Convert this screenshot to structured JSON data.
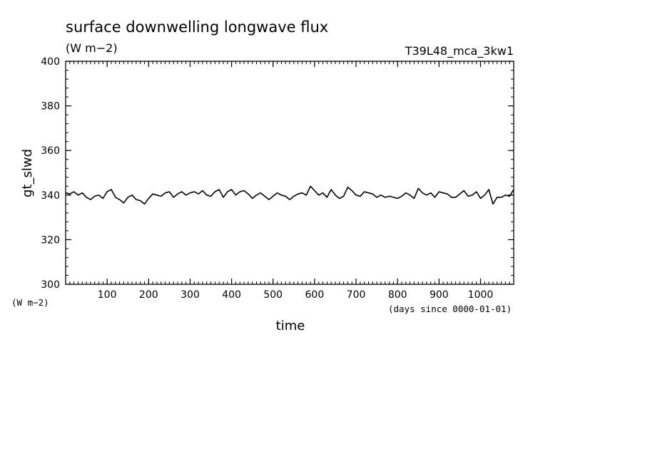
{
  "chart_data": {
    "type": "line",
    "title": "surface downwelling longwave flux",
    "subtitle": "(W m−2)",
    "run_label": "T39L48_mca_3kw1",
    "xlabel": "time",
    "xunits": "(days since 0000-01-01)",
    "ylabel": "gt_slwd",
    "yunits": "(W m−2)",
    "xlim": [
      0,
      1080
    ],
    "ylim": [
      300,
      400
    ],
    "xticks": [
      100,
      200,
      300,
      400,
      500,
      600,
      700,
      800,
      900,
      1000
    ],
    "xtick_labels": [
      "100",
      "200",
      "300",
      "400",
      "500",
      "600",
      "700",
      "800",
      "900",
      "1000"
    ],
    "yticks": [
      300,
      320,
      340,
      360,
      380,
      400
    ],
    "ytick_labels": [
      "300",
      "320",
      "340",
      "360",
      "380",
      "400"
    ],
    "grid": false,
    "series": [
      {
        "color": "#000000",
        "x": [
          0,
          10,
          20,
          30,
          40,
          50,
          60,
          70,
          80,
          90,
          100,
          110,
          120,
          130,
          140,
          150,
          160,
          170,
          180,
          190,
          200,
          210,
          220,
          230,
          240,
          250,
          260,
          270,
          280,
          290,
          300,
          310,
          320,
          330,
          340,
          350,
          360,
          370,
          380,
          390,
          400,
          410,
          420,
          430,
          440,
          450,
          460,
          470,
          480,
          490,
          500,
          510,
          520,
          530,
          540,
          550,
          560,
          570,
          580,
          590,
          600,
          610,
          620,
          630,
          640,
          650,
          660,
          670,
          680,
          690,
          700,
          710,
          720,
          730,
          740,
          750,
          760,
          770,
          780,
          790,
          800,
          810,
          820,
          830,
          840,
          850,
          860,
          870,
          880,
          890,
          900,
          910,
          920,
          930,
          940,
          950,
          960,
          970,
          980,
          990,
          1000,
          1010,
          1020,
          1030,
          1040,
          1050,
          1060,
          1070,
          1080
        ],
        "y": [
          341,
          340.5,
          341.5,
          340,
          341,
          339,
          338,
          339.5,
          340,
          338.5,
          341.5,
          342.5,
          339,
          338,
          336.5,
          339,
          340,
          338,
          337.5,
          336,
          338.5,
          340.5,
          340,
          339.5,
          341,
          341.5,
          339,
          340.5,
          341.5,
          340,
          341,
          341.5,
          340.5,
          342,
          340,
          339.5,
          341.5,
          342.5,
          339,
          341.5,
          342.5,
          340,
          341.5,
          342,
          340.5,
          338.5,
          340,
          341,
          339.5,
          338,
          339.5,
          341,
          340,
          339.5,
          338,
          339.5,
          340.5,
          341,
          340,
          344,
          342,
          340,
          341,
          339,
          342.5,
          340,
          338.5,
          339.5,
          343.5,
          342,
          340,
          339.5,
          341.5,
          341,
          340.5,
          339,
          340,
          339,
          339.5,
          339,
          338.5,
          339.5,
          341,
          340,
          338.5,
          343,
          341,
          340,
          341,
          339,
          341.5,
          341,
          340.5,
          339,
          339,
          340.5,
          342,
          339.5,
          340,
          341.5,
          338.5,
          340,
          342.5,
          336,
          339,
          339,
          340,
          339.5,
          342.5
        ]
      }
    ]
  }
}
